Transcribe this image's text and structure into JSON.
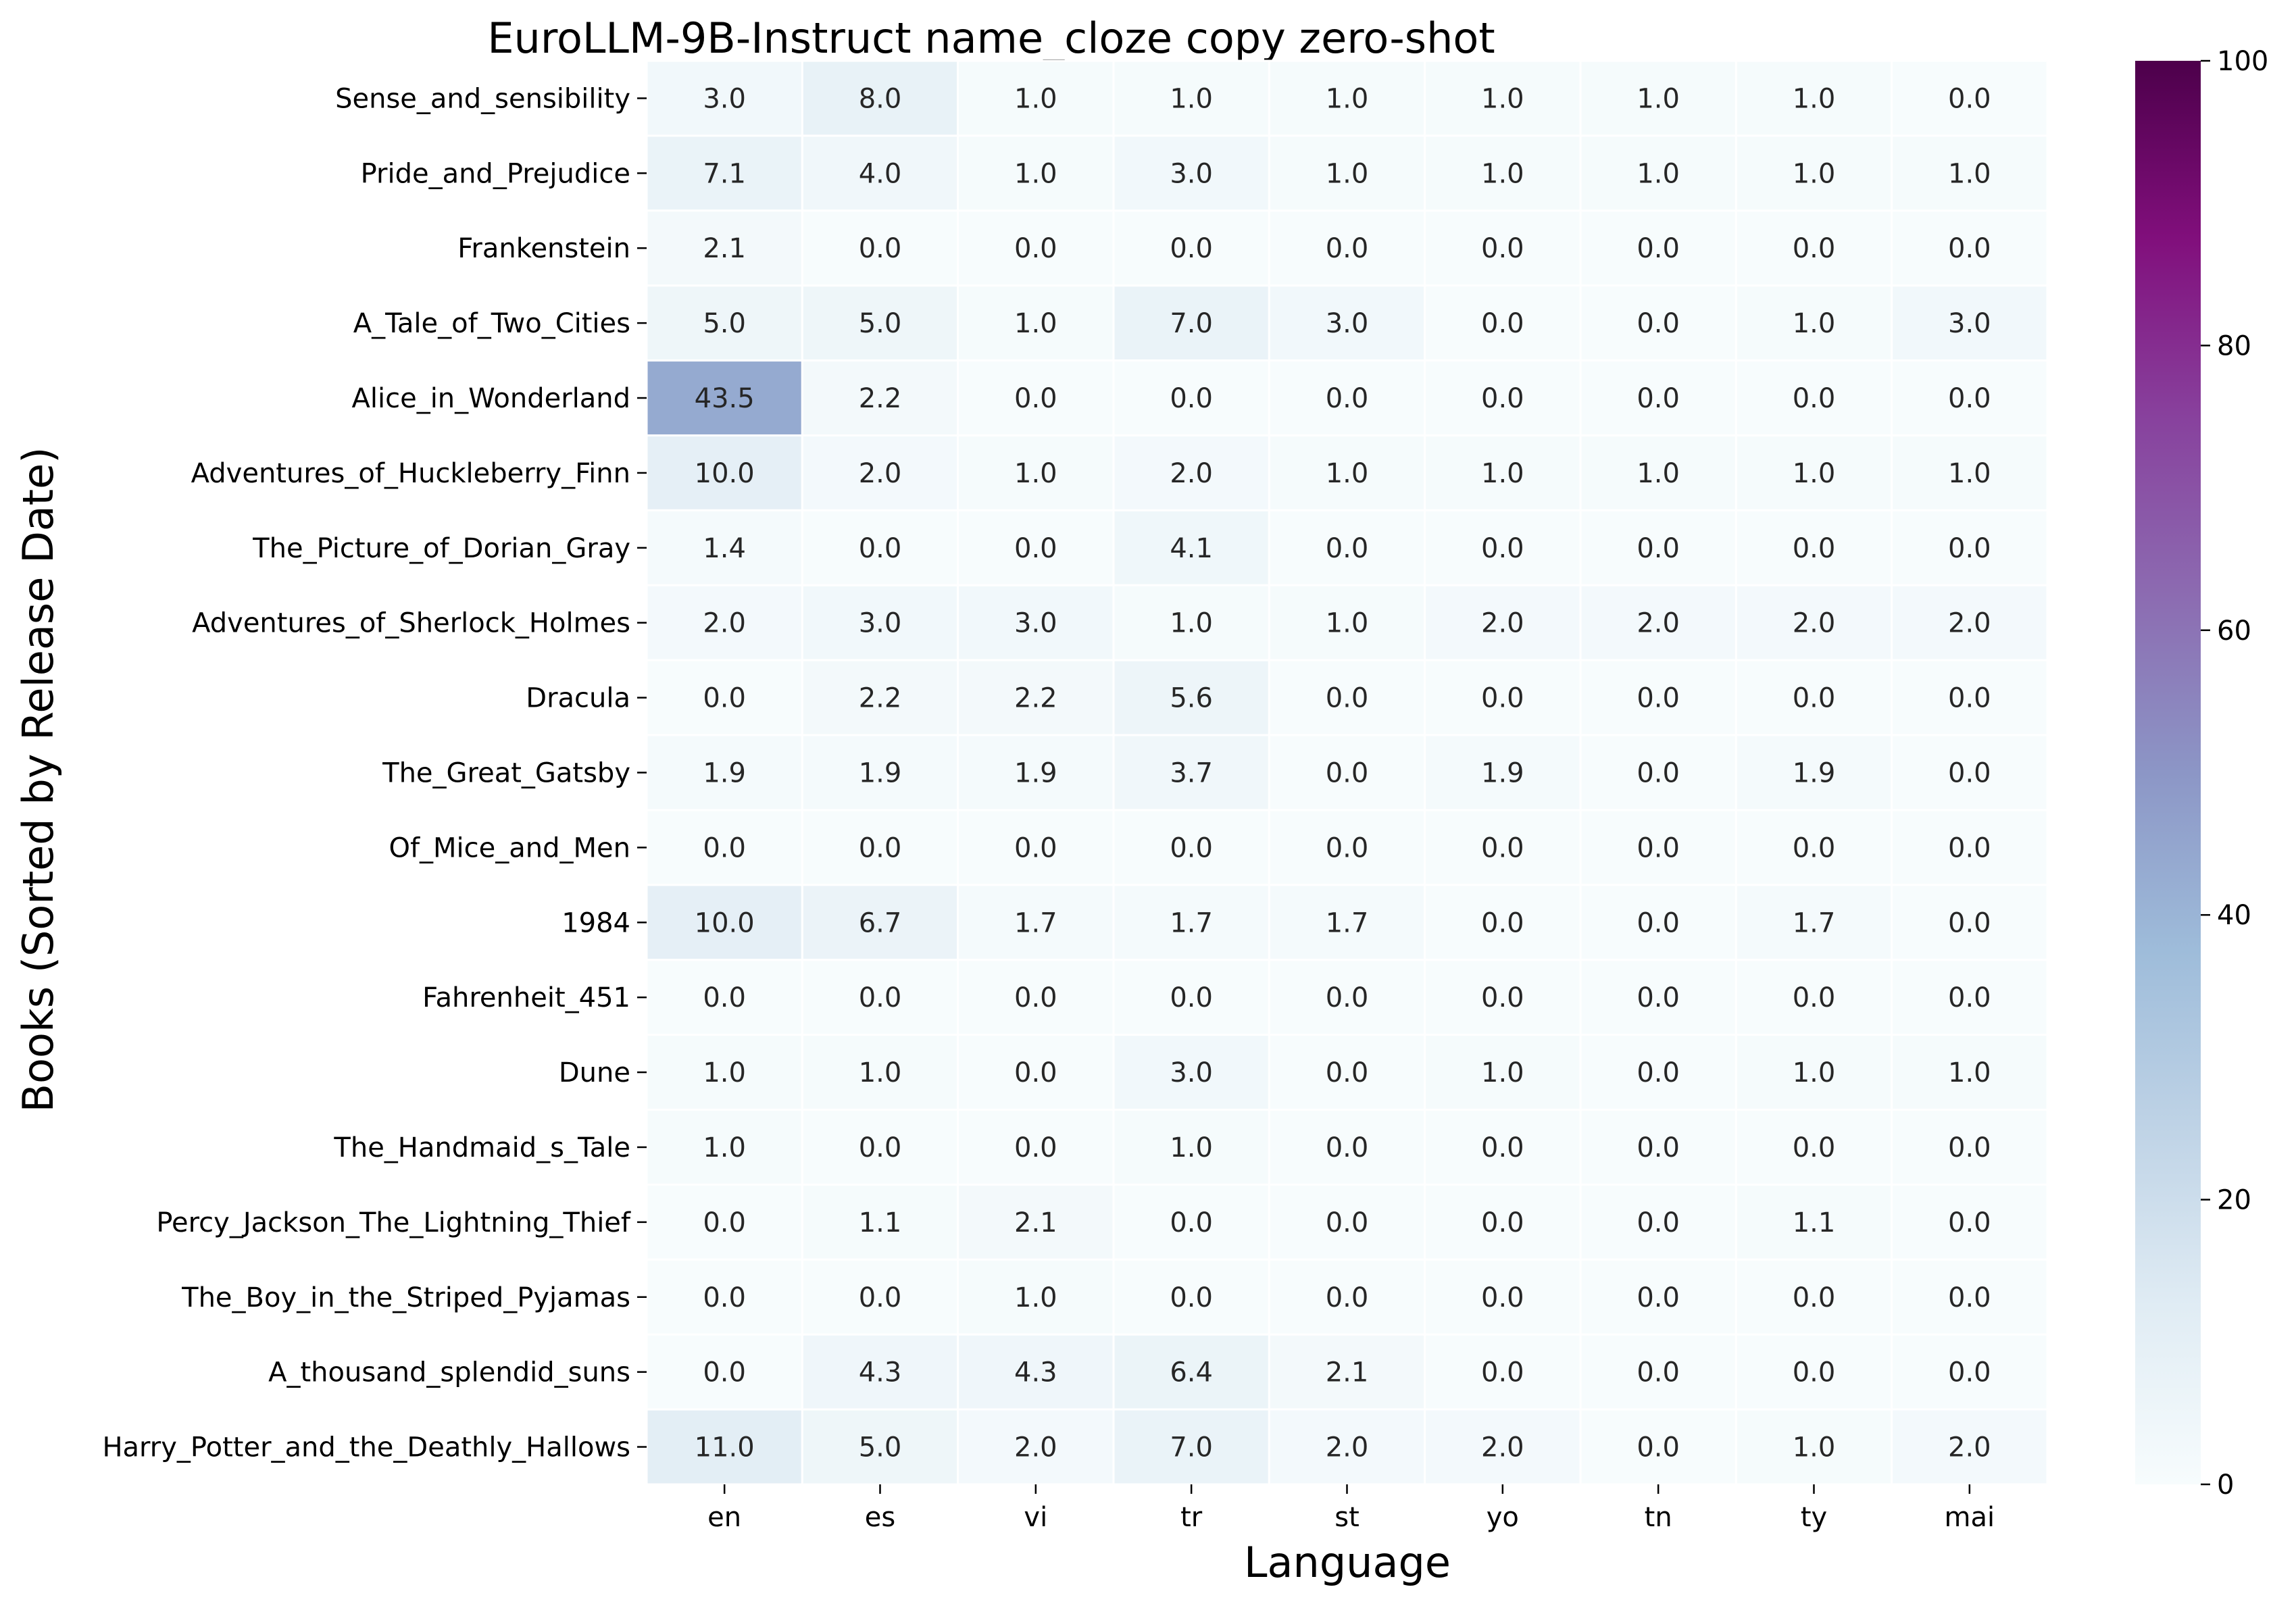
{
  "chart_data": {
    "type": "heatmap",
    "title": "EuroLLM-9B-Instruct name_cloze copy zero-shot",
    "xlabel": "Language",
    "ylabel": "Books (Sorted by Release Date)",
    "x_categories": [
      "en",
      "es",
      "vi",
      "tr",
      "st",
      "yo",
      "tn",
      "ty",
      "mai"
    ],
    "y_categories": [
      "Sense_and_sensibility",
      "Pride_and_Prejudice",
      "Frankenstein",
      "A_Tale_of_Two_Cities",
      "Alice_in_Wonderland",
      "Adventures_of_Huckleberry_Finn",
      "The_Picture_of_Dorian_Gray",
      "Adventures_of_Sherlock_Holmes",
      "Dracula",
      "The_Great_Gatsby",
      "Of_Mice_and_Men",
      "1984",
      "Fahrenheit_451",
      "Dune",
      "The_Handmaid_s_Tale",
      "Percy_Jackson_The_Lightning_Thief",
      "The_Boy_in_the_Striped_Pyjamas",
      "A_thousand_splendid_suns",
      "Harry_Potter_and_the_Deathly_Hallows"
    ],
    "values": [
      [
        3.0,
        8.0,
        1.0,
        1.0,
        1.0,
        1.0,
        1.0,
        1.0,
        0.0
      ],
      [
        7.1,
        4.0,
        1.0,
        3.0,
        1.0,
        1.0,
        1.0,
        1.0,
        1.0
      ],
      [
        2.1,
        0.0,
        0.0,
        0.0,
        0.0,
        0.0,
        0.0,
        0.0,
        0.0
      ],
      [
        5.0,
        5.0,
        1.0,
        7.0,
        3.0,
        0.0,
        0.0,
        1.0,
        3.0
      ],
      [
        43.5,
        2.2,
        0.0,
        0.0,
        0.0,
        0.0,
        0.0,
        0.0,
        0.0
      ],
      [
        10.0,
        2.0,
        1.0,
        2.0,
        1.0,
        1.0,
        1.0,
        1.0,
        1.0
      ],
      [
        1.4,
        0.0,
        0.0,
        4.1,
        0.0,
        0.0,
        0.0,
        0.0,
        0.0
      ],
      [
        2.0,
        3.0,
        3.0,
        1.0,
        1.0,
        2.0,
        2.0,
        2.0,
        2.0
      ],
      [
        0.0,
        2.2,
        2.2,
        5.6,
        0.0,
        0.0,
        0.0,
        0.0,
        0.0
      ],
      [
        1.9,
        1.9,
        1.9,
        3.7,
        0.0,
        1.9,
        0.0,
        1.9,
        0.0
      ],
      [
        0.0,
        0.0,
        0.0,
        0.0,
        0.0,
        0.0,
        0.0,
        0.0,
        0.0
      ],
      [
        10.0,
        6.7,
        1.7,
        1.7,
        1.7,
        0.0,
        0.0,
        1.7,
        0.0
      ],
      [
        0.0,
        0.0,
        0.0,
        0.0,
        0.0,
        0.0,
        0.0,
        0.0,
        0.0
      ],
      [
        1.0,
        1.0,
        0.0,
        3.0,
        0.0,
        1.0,
        0.0,
        1.0,
        1.0
      ],
      [
        1.0,
        0.0,
        0.0,
        1.0,
        0.0,
        0.0,
        0.0,
        0.0,
        0.0
      ],
      [
        0.0,
        1.1,
        2.1,
        0.0,
        0.0,
        0.0,
        0.0,
        1.1,
        0.0
      ],
      [
        0.0,
        0.0,
        1.0,
        0.0,
        0.0,
        0.0,
        0.0,
        0.0,
        0.0
      ],
      [
        0.0,
        4.3,
        4.3,
        6.4,
        2.1,
        0.0,
        0.0,
        0.0,
        0.0
      ],
      [
        11.0,
        5.0,
        2.0,
        7.0,
        2.0,
        2.0,
        0.0,
        1.0,
        2.0
      ]
    ],
    "colorbar": {
      "range": [
        0,
        100
      ],
      "ticks": [
        0,
        20,
        40,
        60,
        80,
        100
      ],
      "colormap": "BuPu",
      "stops": [
        "#f7fcfd",
        "#e0ecf4",
        "#bfd3e6",
        "#9ebcda",
        "#8c96c6",
        "#8c6bb1",
        "#88419d",
        "#810f7c",
        "#4d004b"
      ]
    },
    "annotation_colors": {
      "dark_text": "#262626",
      "light_text": "#ffffff"
    },
    "grid": false,
    "cell_separator_color": "#ffffff"
  }
}
